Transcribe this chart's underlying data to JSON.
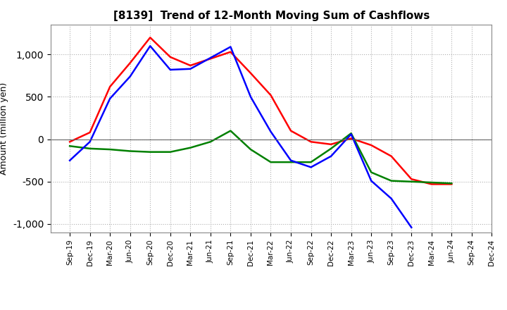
{
  "title": "[8139]  Trend of 12-Month Moving Sum of Cashflows",
  "ylabel": "Amount (million yen)",
  "x_labels": [
    "Sep-19",
    "Dec-19",
    "Mar-20",
    "Jun-20",
    "Sep-20",
    "Dec-20",
    "Mar-21",
    "Jun-21",
    "Sep-21",
    "Dec-21",
    "Mar-22",
    "Jun-22",
    "Sep-22",
    "Dec-22",
    "Mar-23",
    "Jun-23",
    "Sep-23",
    "Dec-23",
    "Mar-24",
    "Jun-24",
    "Sep-24",
    "Dec-24"
  ],
  "operating_cashflow": [
    -30,
    80,
    620,
    900,
    1200,
    970,
    870,
    950,
    1030,
    780,
    520,
    100,
    -30,
    -60,
    10,
    -70,
    -200,
    -470,
    -530,
    -530,
    null,
    null
  ],
  "investing_cashflow": [
    -80,
    -110,
    -120,
    -140,
    -150,
    -150,
    -100,
    -30,
    100,
    -120,
    -270,
    -270,
    -270,
    -110,
    70,
    -390,
    -490,
    -500,
    -510,
    -520,
    null,
    null
  ],
  "free_cashflow": [
    -250,
    -30,
    480,
    740,
    1100,
    820,
    830,
    960,
    1090,
    500,
    90,
    -250,
    -330,
    -200,
    60,
    -490,
    -700,
    -1040,
    null,
    null,
    null,
    null
  ],
  "operating_color": "#ff0000",
  "investing_color": "#008000",
  "free_color": "#0000ff",
  "ylim": [
    -1100,
    1350
  ],
  "yticks": [
    -1000,
    -500,
    0,
    500,
    1000
  ],
  "background_color": "#ffffff",
  "grid_color": "#b0b0b0",
  "line_width": 1.8
}
